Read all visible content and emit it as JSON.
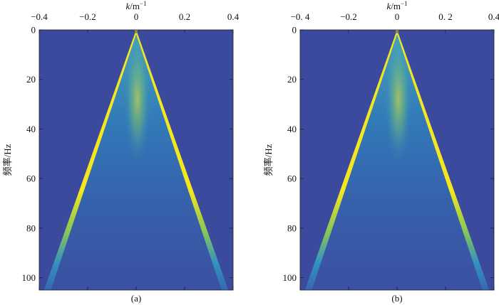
{
  "chart_data": [
    {
      "type": "heatmap",
      "panel_label": "(a)",
      "xlabel_base": "k",
      "xlabel_unit": "/m",
      "xlabel_sup": "−1",
      "ylabel": "频率/Hz",
      "xlim": [
        -0.4,
        0.4
      ],
      "ylim": [
        0,
        105
      ],
      "x_ticks": [
        -0.4,
        -0.2,
        0,
        0.2,
        0.4
      ],
      "x_tick_labels": [
        "−0.4",
        "−0.2",
        "0",
        "0.2",
        "0.4"
      ],
      "y_ticks": [
        0,
        20,
        40,
        60,
        80,
        100
      ],
      "y_tick_labels": [
        "0",
        "20",
        "40",
        "60",
        "80",
        "100"
      ],
      "x_axis_position": "top",
      "y_axis_reversed": true,
      "background_color": "#3b4a9c",
      "high_color": "#f5e61e",
      "mid_color": "#2fa0c8",
      "cone_apex": [
        0,
        0
      ],
      "cone_edges_at_ymax": [
        -0.38,
        0.38
      ]
    },
    {
      "type": "heatmap",
      "panel_label": "(b)",
      "xlabel_base": "k",
      "xlabel_unit": "/m",
      "xlabel_sup": "−1",
      "ylabel": "频率/Hz",
      "xlim": [
        -0.4,
        0.4
      ],
      "ylim": [
        0,
        105
      ],
      "x_ticks": [
        -0.4,
        -0.2,
        0,
        0.2,
        0.4
      ],
      "x_tick_labels": [
        "−0. 4",
        "−0.2",
        "0",
        "0. 2",
        "0.4"
      ],
      "y_ticks": [
        0,
        20,
        40,
        60,
        80,
        100
      ],
      "y_tick_labels": [
        "0",
        "20",
        "40",
        "60",
        "80",
        "100"
      ],
      "x_axis_position": "top",
      "y_axis_reversed": true,
      "background_color": "#3b4a9c",
      "high_color": "#f5e61e",
      "mid_color": "#2fa0c8",
      "cone_apex": [
        0,
        0
      ],
      "cone_edges_at_ymax": [
        -0.38,
        0.38
      ]
    }
  ]
}
